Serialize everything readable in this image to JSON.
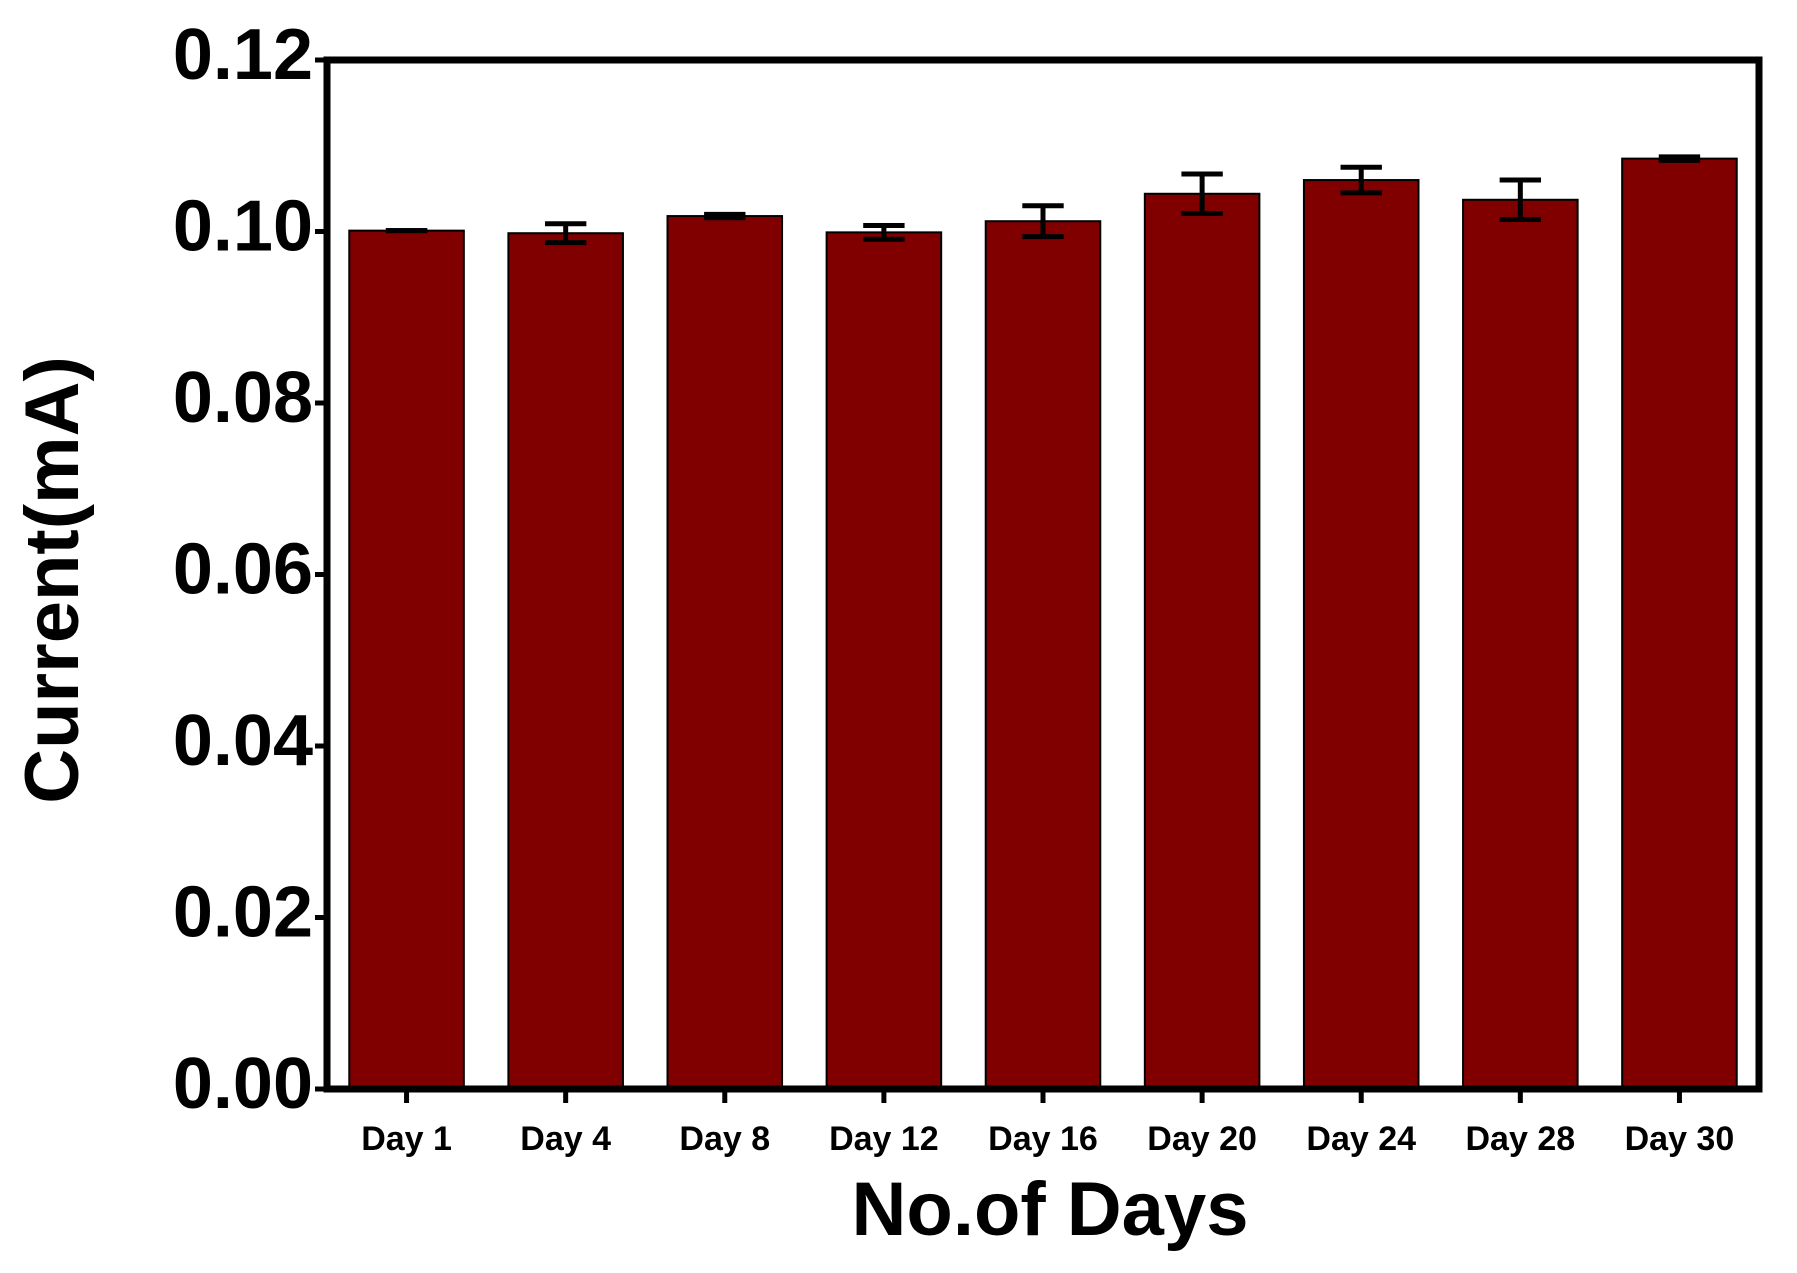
{
  "chart_data": {
    "type": "bar",
    "x_label": "No.of Days",
    "y_label": "Current(mA)",
    "categories": [
      "Day 1",
      "Day 4",
      "Day 8",
      "Day 12",
      "Day 16",
      "Day 20",
      "Day 24",
      "Day 28",
      "Day 30"
    ],
    "values": [
      0.1001,
      0.0998,
      0.1018,
      0.0999,
      0.1012,
      0.1044,
      0.106,
      0.1037,
      0.1085
    ],
    "errors": [
      0,
      0.0011,
      0.0002,
      0.0008,
      0.0018,
      0.0023,
      0.0015,
      0.0023,
      0.0002
    ],
    "color": "#800000",
    "ylim": [
      0,
      0.12
    ],
    "yticks": [
      {
        "value": 0,
        "label": "0.00"
      },
      {
        "value": 0.02,
        "label": "0.02"
      },
      {
        "value": 0.04,
        "label": "0.04"
      },
      {
        "value": 0.06,
        "label": "0.06"
      },
      {
        "value": 0.08,
        "label": "0.08"
      },
      {
        "value": 0.1,
        "label": "0.10"
      },
      {
        "value": 0.12,
        "label": "0.12"
      }
    ],
    "grid": false
  }
}
